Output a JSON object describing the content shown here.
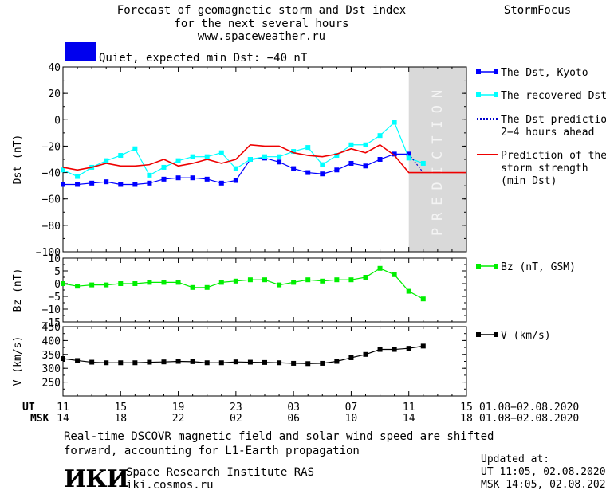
{
  "header": {
    "title_lines": [
      "Forecast of geomagnetic storm and Dst index",
      "for the next several hours",
      "www.spaceweather.ru"
    ],
    "brand": "StormFocus"
  },
  "status": {
    "text": "Quiet, expected min Dst: −40 nT",
    "color": "#0000ee"
  },
  "prediction_label": "PREDICTION",
  "footer": {
    "note_lines": [
      "Real-time DSCOVR magnetic field and solar wind speed are shifted",
      "forward, accounting for L1-Earth propagation"
    ],
    "logo": "ИКИ",
    "institute": "Space Research Institute RAS",
    "site": "iki.cosmos.ru",
    "updated_title": "Updated at:",
    "updated_ut": "UT   11:05, 02.08.2020",
    "updated_msk": "MSK 14:05, 02.08.2020"
  },
  "time_axis": {
    "ut_label": "UT",
    "msk_label": "MSK",
    "ut_ticks": [
      "11",
      "15",
      "19",
      "23",
      "03",
      "07",
      "11",
      "15"
    ],
    "msk_ticks": [
      "14",
      "18",
      "22",
      "02",
      "06",
      "10",
      "14",
      "18"
    ],
    "ut_range": "01.08−02.08.2020",
    "msk_range": "01.08−02.08.2020"
  },
  "chart_data": [
    {
      "type": "line",
      "ylabel": "Dst (nT)",
      "ylim": [
        -100,
        40
      ],
      "yticks": [
        "40",
        "20",
        "0",
        "−20",
        "−40",
        "−60",
        "−80",
        "−100"
      ],
      "xlim": [
        0,
        28
      ],
      "prediction_region": [
        24,
        28
      ],
      "series": [
        {
          "name": "The Dst, Kyoto",
          "color": "#0000ff",
          "x": [
            0,
            1,
            2,
            3,
            4,
            5,
            6,
            7,
            8,
            9,
            10,
            11,
            12,
            13,
            14,
            15,
            16,
            17,
            18,
            19,
            20,
            21,
            22,
            23,
            24
          ],
          "values": [
            -49,
            -49,
            -48,
            -47,
            -49,
            -49,
            -48,
            -45,
            -44,
            -44,
            -45,
            -48,
            -46,
            -30,
            -29,
            -32,
            -37,
            -40,
            -41,
            -38,
            -33,
            -35,
            -30,
            -26,
            -26
          ]
        },
        {
          "name": "The recovered Dst",
          "color": "#00ffff",
          "x": [
            0,
            1,
            2,
            3,
            4,
            5,
            6,
            7,
            8,
            9,
            10,
            11,
            12,
            13,
            14,
            15,
            16,
            17,
            18,
            19,
            20,
            21,
            22,
            23,
            24,
            25
          ],
          "values": [
            -38,
            -43,
            -36,
            -31,
            -27,
            -22,
            -42,
            -36,
            -31,
            -28,
            -28,
            -25,
            -37,
            -30,
            -28,
            -28,
            -24,
            -21,
            -34,
            -27,
            -19,
            -19,
            -12,
            -2,
            -29,
            -33
          ]
        },
        {
          "name": "The Dst prediction\n2−4 hours ahead",
          "color": "#0000cc",
          "x": [
            24,
            25
          ],
          "values": [
            -26,
            -40
          ]
        },
        {
          "name": "Prediction of the\nstorm strength\n(min Dst)",
          "color": "#ee0000",
          "x": [
            0,
            1,
            2,
            3,
            4,
            5,
            6,
            7,
            8,
            9,
            10,
            11,
            12,
            13,
            14,
            15,
            16,
            17,
            18,
            19,
            20,
            21,
            22,
            23,
            24,
            25,
            26,
            27,
            28
          ],
          "values": [
            -36,
            -38,
            -36,
            -33,
            -35,
            -35,
            -34,
            -30,
            -35,
            -33,
            -30,
            -33,
            -30,
            -19,
            -20,
            -20,
            -25,
            -27,
            -28,
            -26,
            -22,
            -25,
            -19,
            -27,
            -40,
            -40,
            -40,
            -40,
            -40
          ]
        }
      ]
    },
    {
      "type": "line",
      "ylabel": "Bz (nT)",
      "ylim": [
        -15,
        10
      ],
      "yticks": [
        "10",
        "5",
        "0",
        "−5",
        "−10",
        "−15"
      ],
      "xlim": [
        0,
        28
      ],
      "series": [
        {
          "name": "Bz (nT, GSM)",
          "color": "#00ee00",
          "x": [
            0,
            1,
            2,
            3,
            4,
            5,
            6,
            7,
            8,
            9,
            10,
            11,
            12,
            13,
            14,
            15,
            16,
            17,
            18,
            19,
            20,
            21,
            22,
            23,
            24,
            25
          ],
          "values": [
            0,
            -1,
            -0.5,
            -0.5,
            0,
            0,
            0.5,
            0.5,
            0.5,
            -1.5,
            -1.5,
            0.5,
            1,
            1.5,
            1.5,
            -0.5,
            0.5,
            1.5,
            1,
            1.5,
            1.5,
            2.5,
            6,
            3.5,
            -3,
            -6
          ]
        }
      ]
    },
    {
      "type": "line",
      "ylabel": "V (km/s)",
      "ylim": [
        200,
        450
      ],
      "yticks": [
        "450",
        "400",
        "350",
        "300",
        "250"
      ],
      "xlim": [
        0,
        28
      ],
      "series": [
        {
          "name": "V (km/s)",
          "color": "#000000",
          "x": [
            0,
            1,
            2,
            3,
            4,
            5,
            6,
            7,
            8,
            9,
            10,
            11,
            12,
            13,
            14,
            15,
            16,
            17,
            18,
            19,
            20,
            21,
            22,
            23,
            24,
            25
          ],
          "values": [
            335,
            328,
            322,
            320,
            320,
            320,
            322,
            323,
            325,
            324,
            320,
            320,
            323,
            322,
            321,
            320,
            318,
            317,
            318,
            325,
            338,
            350,
            368,
            368,
            372,
            380
          ]
        }
      ]
    }
  ]
}
